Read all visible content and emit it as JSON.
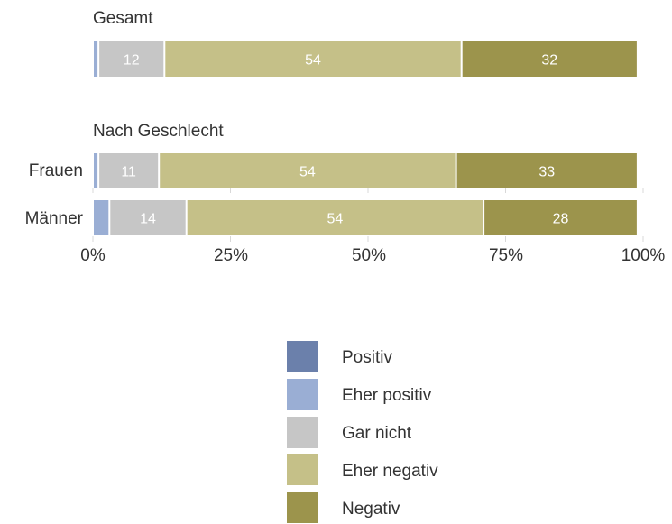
{
  "chart_data": {
    "type": "bar",
    "orientation": "horizontal",
    "stacked": true,
    "xlim": [
      0,
      100
    ],
    "ticks": [
      "0%",
      "25%",
      "50%",
      "75%",
      "100%"
    ],
    "legend_position": "bottom",
    "groups": [
      {
        "title": "Gesamt",
        "rows": [
          {
            "label": "",
            "values": [
              0,
              1,
              12,
              54,
              32
            ],
            "labels": [
              "",
              "",
              "12",
              "54",
              "32"
            ]
          }
        ]
      },
      {
        "title": "Nach Geschlecht",
        "rows": [
          {
            "label": "Frauen",
            "values": [
              0,
              1,
              11,
              54,
              33
            ],
            "labels": [
              "",
              "",
              "11",
              "54",
              "33"
            ]
          },
          {
            "label": "Männer",
            "values": [
              0,
              3,
              14,
              54,
              28
            ],
            "labels": [
              "",
              "",
              "14",
              "54",
              "28"
            ]
          }
        ]
      }
    ],
    "series": [
      {
        "name": "Positiv",
        "color": "#6b80ab"
      },
      {
        "name": "Eher positiv",
        "color": "#9aaed4"
      },
      {
        "name": "Gar nicht",
        "color": "#c6c6c6"
      },
      {
        "name": "Eher negativ",
        "color": "#c5c088"
      },
      {
        "name": "Negativ",
        "color": "#9c944c"
      }
    ]
  }
}
